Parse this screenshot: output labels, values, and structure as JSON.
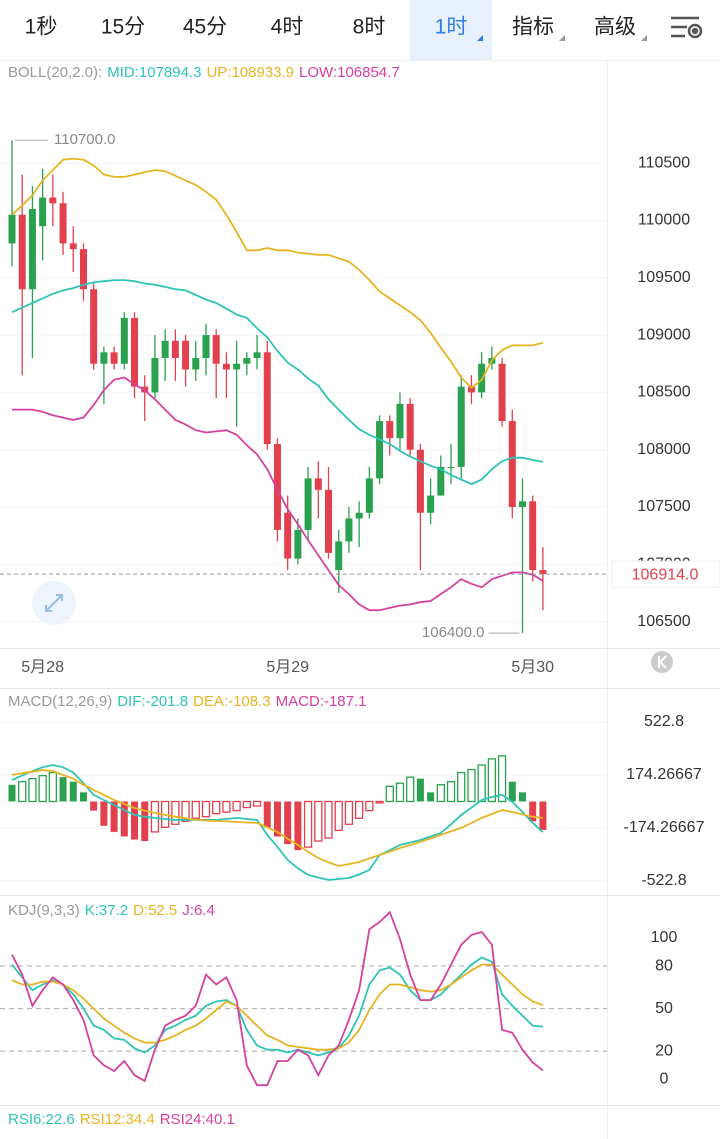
{
  "tabs": [
    {
      "label": "1秒"
    },
    {
      "label": "15分"
    },
    {
      "label": "45分"
    },
    {
      "label": "4时"
    },
    {
      "label": "8时"
    },
    {
      "label": "1时",
      "active": true,
      "menu": true
    },
    {
      "label": "指标",
      "menu": true
    },
    {
      "label": "高级",
      "menu": true
    }
  ],
  "chart_data": [
    {
      "type": "candlestick",
      "title": "BOLL(20,2.0):",
      "up_color": "#2aa14f",
      "down_color": "#e3404e",
      "grid": true,
      "ylim": [
        106270,
        111400
      ],
      "yticks": [
        106500,
        107000,
        107500,
        108000,
        108500,
        109000,
        109500,
        110000,
        110500
      ],
      "xticks": [
        {
          "value": 3,
          "label": "5月28"
        },
        {
          "value": 27,
          "label": "5月29"
        },
        {
          "value": 51,
          "label": "5月30"
        }
      ],
      "open": [
        109800,
        110050,
        109400,
        109950,
        110200,
        110150,
        109800,
        109750,
        109400,
        108750,
        108850,
        108750,
        109150,
        108550,
        108500,
        108800,
        108950,
        108950,
        108700,
        108800,
        109000,
        108750,
        108700,
        108750,
        108800,
        108850,
        108050,
        107450,
        107050,
        107300,
        107750,
        107650,
        106950,
        107200,
        107400,
        107450,
        107750,
        108250,
        108100,
        108400,
        108000,
        107450,
        107600,
        107850,
        107850,
        108550,
        108500,
        108750,
        108750,
        108250,
        107500,
        107550,
        106950
      ],
      "high": [
        110700,
        110400,
        110300,
        110450,
        110400,
        110250,
        109950,
        109800,
        109450,
        108900,
        108900,
        109200,
        109200,
        108650,
        109000,
        109050,
        109050,
        109000,
        108950,
        109100,
        109050,
        108850,
        108950,
        108850,
        109000,
        108950,
        108100,
        107600,
        107400,
        107850,
        107900,
        107850,
        107300,
        107500,
        107550,
        107850,
        108300,
        108300,
        108500,
        108450,
        108050,
        107750,
        107950,
        108050,
        108650,
        108650,
        108850,
        108900,
        108800,
        108350,
        107750,
        107600,
        107150
      ],
      "low": [
        109600,
        108650,
        108800,
        109650,
        109950,
        109700,
        109550,
        109300,
        108700,
        108400,
        108700,
        108700,
        108450,
        108250,
        108450,
        108600,
        108600,
        108550,
        108600,
        108650,
        108450,
        108450,
        108200,
        108650,
        108700,
        108000,
        107200,
        106950,
        107000,
        107200,
        107400,
        107050,
        106750,
        107100,
        107150,
        107400,
        107700,
        107950,
        108000,
        107950,
        106950,
        107350,
        107600,
        107700,
        107750,
        108400,
        108450,
        108700,
        108200,
        107400,
        106400,
        106850,
        106600
      ],
      "close": [
        110050,
        109400,
        110100,
        110200,
        110150,
        109800,
        109750,
        109400,
        108750,
        108850,
        108750,
        109150,
        108550,
        108500,
        108800,
        108950,
        108800,
        108700,
        108800,
        109000,
        108750,
        108700,
        108750,
        108800,
        108850,
        108050,
        107300,
        107050,
        107300,
        107750,
        107650,
        107100,
        107200,
        107400,
        107450,
        107750,
        108250,
        108100,
        108400,
        108000,
        107450,
        107600,
        107850,
        107850,
        108550,
        108500,
        108750,
        108800,
        108250,
        107500,
        107550,
        106950,
        106914
      ],
      "series": [
        {
          "name": "MID:107894.3",
          "color": "#2ec4b6",
          "values": [
            109200,
            109240,
            109280,
            109320,
            109360,
            109390,
            109410,
            109440,
            109460,
            109470,
            109480,
            109480,
            109470,
            109450,
            109440,
            109420,
            109400,
            109390,
            109350,
            109310,
            109280,
            109230,
            109180,
            109150,
            109060,
            108980,
            108860,
            108760,
            108700,
            108620,
            108560,
            108440,
            108350,
            108260,
            108180,
            108130,
            108090,
            108050,
            107990,
            107940,
            107900,
            107860,
            107830,
            107780,
            107740,
            107700,
            107740,
            107830,
            107900,
            107930,
            107930,
            107910,
            107894
          ]
        },
        {
          "name": "UP:108933.9",
          "color": "#e6b422",
          "values": [
            110050,
            110130,
            110220,
            110350,
            110440,
            110530,
            110540,
            110530,
            110480,
            110400,
            110380,
            110380,
            110400,
            110420,
            110440,
            110430,
            110390,
            110350,
            110310,
            110250,
            110180,
            110050,
            109900,
            109740,
            109740,
            109760,
            109740,
            109740,
            109720,
            109710,
            109700,
            109700,
            109670,
            109640,
            109570,
            109480,
            109380,
            109320,
            109260,
            109200,
            109130,
            109020,
            108890,
            108770,
            108630,
            108540,
            108610,
            108780,
            108870,
            108910,
            108910,
            108910,
            108934
          ]
        },
        {
          "name": "LOW:106854.7",
          "color": "#d6409f",
          "values": [
            108350,
            108350,
            108350,
            108330,
            108300,
            108280,
            108260,
            108280,
            108390,
            108520,
            108610,
            108630,
            108570,
            108520,
            108440,
            108350,
            108260,
            108220,
            108170,
            108150,
            108160,
            108170,
            108130,
            108040,
            107960,
            107830,
            107650,
            107480,
            107350,
            107210,
            107080,
            106950,
            106820,
            106740,
            106650,
            106600,
            106600,
            106620,
            106640,
            106650,
            106670,
            106680,
            106740,
            106800,
            106870,
            106830,
            106800,
            106870,
            106900,
            106930,
            106930,
            106910,
            106855
          ]
        }
      ],
      "annotations": [
        {
          "text": "110700.0",
          "x": 0,
          "y": 110700,
          "side": "right"
        },
        {
          "text": "106400.0",
          "x": 50,
          "y": 106400,
          "side": "left"
        }
      ],
      "current_price": {
        "value": 106914,
        "label": "106914.0"
      }
    },
    {
      "type": "macd",
      "title": "MACD(12,26,9)",
      "up_color": "#2aa14f",
      "down_color": "#e3404e",
      "grid": true,
      "ylim": [
        -582,
        733
      ],
      "yticks": [
        522.8,
        174.26667,
        -174.26667,
        -522.8
      ],
      "series": [
        {
          "name": "DIF:-201.8",
          "color": "#2ec4b6",
          "values": [
            141,
            170,
            200,
            225,
            240,
            225,
            190,
            120,
            43,
            10,
            -23,
            -56,
            -89,
            -100,
            -108,
            -115,
            -121,
            -121,
            -121,
            -121,
            -121,
            -115,
            -108,
            -115,
            -121,
            -220,
            -300,
            -384,
            -440,
            -483,
            -500,
            -516,
            -510,
            -503,
            -480,
            -450,
            -352,
            -320,
            -286,
            -270,
            -253,
            -230,
            -207,
            -150,
            -89,
            -40,
            10,
            30,
            43,
            -3,
            -69,
            -140,
            -201.8
          ]
        },
        {
          "name": "DEA:-108.3",
          "color": "#e6b422",
          "values": [
            174,
            185,
            196,
            207,
            200,
            174,
            150,
            110,
            76,
            43,
            10,
            -16,
            -43,
            -60,
            -75,
            -89,
            -100,
            -110,
            -121,
            -125,
            -128,
            -131,
            -135,
            -138,
            -141,
            -170,
            -201,
            -245,
            -286,
            -330,
            -372,
            -400,
            -424,
            -412,
            -398,
            -375,
            -352,
            -330,
            -306,
            -286,
            -266,
            -243,
            -220,
            -197,
            -174,
            -141,
            -108,
            -82,
            -56,
            -70,
            -85,
            -100,
            -108.3
          ]
        }
      ],
      "histogram": {
        "name": "MACD:-187.1",
        "color": "#d6409f",
        "values": [
          110,
          130,
          150,
          170,
          190,
          160,
          130,
          60,
          -60,
          -160,
          -200,
          -230,
          -250,
          -260,
          -200,
          -170,
          -150,
          -130,
          -110,
          -100,
          -80,
          -70,
          -60,
          -40,
          -30,
          -170,
          -230,
          -280,
          -320,
          -300,
          -260,
          -240,
          -190,
          -150,
          -110,
          -60,
          -10,
          100,
          120,
          160,
          150,
          60,
          110,
          130,
          190,
          210,
          240,
          280,
          300,
          130,
          60,
          -130,
          -187.1
        ]
      }
    },
    {
      "type": "line",
      "title": "KDJ(9,3,3)",
      "ylim": [
        -18,
        128
      ],
      "yticks": [
        100,
        80,
        50,
        20,
        0
      ],
      "dashed_lines": [
        80,
        50,
        20
      ],
      "series": [
        {
          "name": "K:37.2",
          "color": "#2ec4b6",
          "values": [
            81,
            72,
            63,
            67,
            70,
            67,
            60,
            50,
            38,
            35,
            29,
            28,
            22,
            19,
            24,
            35,
            38,
            42,
            45,
            52,
            55,
            56,
            52,
            35,
            24,
            21,
            21,
            19,
            21,
            19,
            17,
            19,
            22,
            31,
            45,
            67,
            77,
            79,
            74,
            63,
            56,
            56,
            60,
            67,
            74,
            81,
            86,
            83,
            60,
            52,
            45,
            38,
            37.2
          ]
        },
        {
          "name": "D:52.5",
          "color": "#e6b422",
          "values": [
            70,
            67,
            67,
            69,
            69,
            67,
            63,
            57,
            50,
            43,
            38,
            33,
            29,
            26,
            26,
            28,
            31,
            35,
            38,
            43,
            49,
            55,
            52,
            45,
            38,
            31,
            28,
            24,
            23,
            22,
            21,
            21,
            22,
            26,
            35,
            49,
            60,
            67,
            67,
            65,
            63,
            62,
            63,
            67,
            72,
            77,
            81,
            81,
            74,
            67,
            60,
            55,
            52.5
          ]
        },
        {
          "name": "J:6.4",
          "color": "#d6409f",
          "values": [
            88,
            74,
            52,
            63,
            72,
            67,
            56,
            42,
            17,
            10,
            6,
            13,
            3,
            -1,
            21,
            38,
            42,
            45,
            52,
            74,
            67,
            72,
            56,
            10,
            -4,
            -4,
            13,
            13,
            21,
            17,
            3,
            17,
            24,
            42,
            63,
            106,
            111,
            118,
            99,
            74,
            56,
            56,
            67,
            81,
            95,
            102,
            104,
            95,
            35,
            33,
            21,
            12,
            6.4
          ]
        }
      ]
    }
  ],
  "rsi_legend": [
    {
      "label": "RSI6:22.6",
      "color": "#2ec4b6"
    },
    {
      "label": "RSI12:34.4",
      "color": "#e6b422"
    },
    {
      "label": "RSI24:40.1",
      "color": "#d6409f"
    }
  ]
}
